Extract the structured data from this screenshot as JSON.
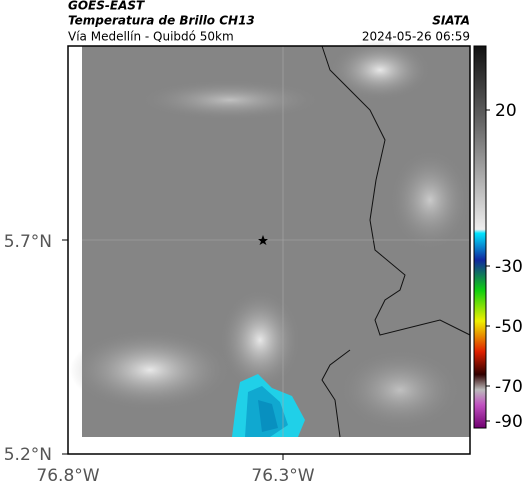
{
  "header": {
    "title": "GOES-EAST",
    "subtitle": "Temperatura de Brillo CH13",
    "source": "SIATA",
    "region": "Vía Medellín - Quibdó 50km",
    "timestamp": "2024-05-26 06:59"
  },
  "map": {
    "lat_labels": [
      "5.7°N",
      "5.2°N"
    ],
    "lon_labels": [
      "76.8°W",
      "76.3°W"
    ]
  },
  "colorbar": {
    "tick_labels": [
      "20",
      "-30",
      "-50",
      "-70",
      "-90"
    ]
  }
}
